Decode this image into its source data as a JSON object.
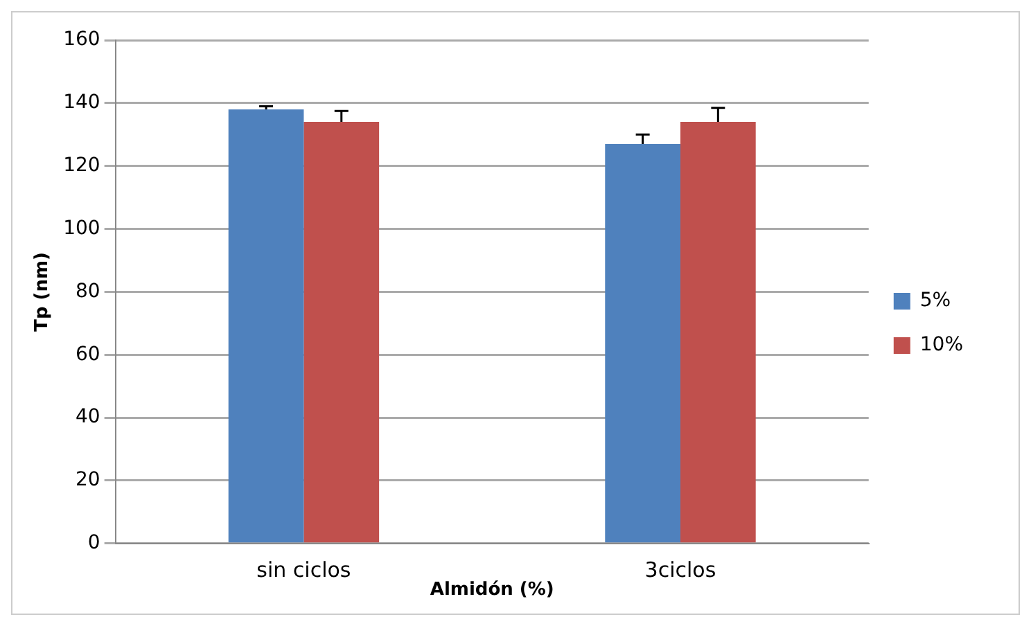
{
  "chart_data": {
    "type": "bar",
    "xlabel": "Almidón (%)",
    "ylabel": "Tp (nm)",
    "categories": [
      "sin ciclos",
      "3ciclos"
    ],
    "series": [
      {
        "name": "5%",
        "color": "#4f81bd",
        "values": [
          138,
          127
        ],
        "errors": [
          [
            138,
            139
          ],
          [
            127,
            130
          ]
        ]
      },
      {
        "name": "10%",
        "color": "#c0504d",
        "values": [
          134,
          134
        ],
        "errors": [
          [
            134,
            137.5
          ],
          [
            134,
            138.5
          ]
        ]
      }
    ],
    "ylim": [
      0,
      160
    ],
    "yticks": [
      0,
      20,
      40,
      60,
      80,
      100,
      120,
      140,
      160
    ],
    "grid": "y",
    "legend": "right"
  }
}
